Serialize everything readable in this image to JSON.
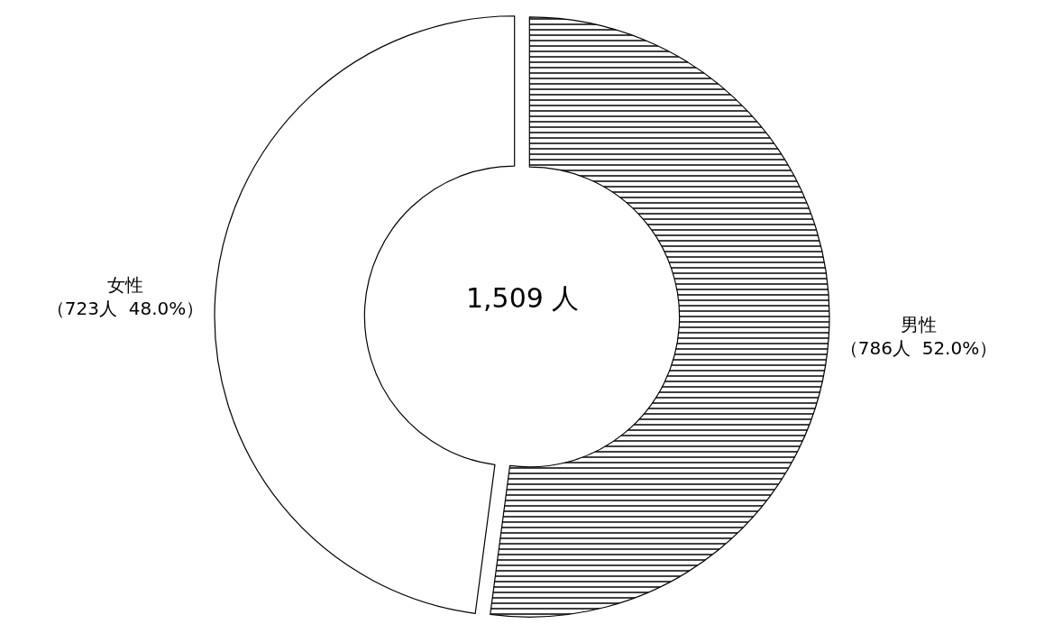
{
  "chart_data": {
    "type": "donut",
    "categories": [
      "男性",
      "女性"
    ],
    "values": [
      786,
      723
    ],
    "value_labels": [
      "（786人  52.0%）",
      "（723人  48.0%）"
    ],
    "colors": [
      "#000000",
      "#ffffff"
    ],
    "annotations": [
      "1,509 人"
    ],
    "legend": false
  }
}
